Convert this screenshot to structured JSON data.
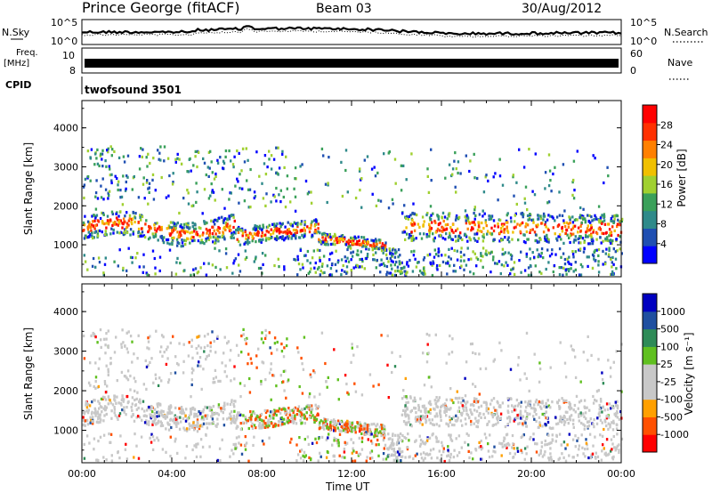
{
  "header": {
    "station": "Prince George (fitACF)",
    "beam": "Beam 03",
    "date": "30/Aug/2012"
  },
  "status_panels": {
    "nsky_label": "N.Sky",
    "nsearch_label": "N.Search",
    "noise_ticks": [
      "10^5",
      "10^0"
    ],
    "freq_label": "Freq.",
    "freq_unit": "[MHz]",
    "freq_ticks": [
      "10",
      "8"
    ],
    "nave_label": "Nave",
    "nave_ticks": [
      "60",
      "0"
    ],
    "cpid_label": "CPID",
    "cpid_value": "twofsound 3501"
  },
  "colors": {
    "power_scale": [
      "#0000ff",
      "#1f4fb2",
      "#2f8a8a",
      "#3aa05a",
      "#a0d030",
      "#f0c000",
      "#ff8000",
      "#ff3000",
      "#ff0000"
    ],
    "velocity_scale": [
      "#ff0000",
      "#ff5000",
      "#ffa000",
      "#c8c8c8",
      "#c8c8c8",
      "#60c020",
      "#2e8b57",
      "#1f4fa0",
      "#0000c0"
    ]
  },
  "chart_data": [
    {
      "type": "heatmap",
      "panel": "power",
      "ylabel": "Slant Range [km]",
      "y_ticks": [
        1000,
        2000,
        3000,
        4000
      ],
      "ylim": [
        180,
        4700
      ],
      "xlim_hours": [
        0,
        24
      ],
      "colorbar": {
        "label": "Power [dB]",
        "ticks": [
          4,
          8,
          12,
          16,
          20,
          24,
          28
        ],
        "range": [
          0,
          32
        ]
      }
    },
    {
      "type": "heatmap",
      "panel": "velocity",
      "ylabel": "Slant Range [km]",
      "y_ticks": [
        1000,
        2000,
        3000,
        4000
      ],
      "ylim": [
        180,
        4700
      ],
      "xlim_hours": [
        0,
        24
      ],
      "xlabel": "Time UT",
      "x_ticks": [
        "00:00",
        "04:00",
        "08:00",
        "12:00",
        "16:00",
        "20:00",
        "00:00"
      ],
      "colorbar": {
        "label": "Velocity [m s⁻¹]",
        "ticks": [
          "-1000",
          "-500",
          "-100",
          "-25",
          "25",
          "100",
          "500",
          "1000"
        ]
      }
    }
  ]
}
